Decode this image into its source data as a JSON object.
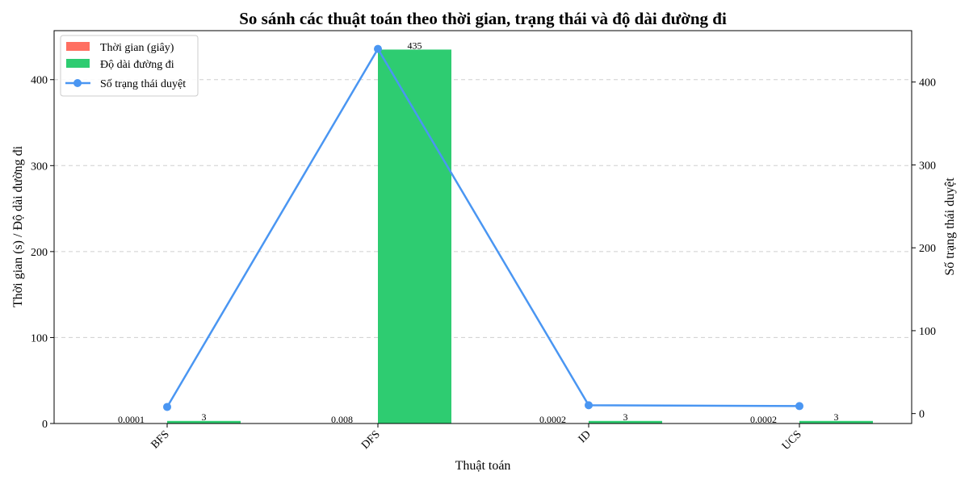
{
  "chart_data": {
    "type": "bar",
    "title": "So sánh các thuật toán theo thời gian, trạng thái và độ dài đường đi",
    "xlabel": "Thuật toán",
    "ylabel": "Thời gian (s) / Độ dài đường đi",
    "y2label": "Số trạng thái duyệt",
    "categories": [
      "BFS",
      "DFS",
      "ID",
      "UCS"
    ],
    "ylim": [
      0,
      457
    ],
    "y2lim": [
      -12,
      462
    ],
    "yticks": [
      0,
      100,
      200,
      300,
      400
    ],
    "y2ticks": [
      0,
      100,
      200,
      300,
      400
    ],
    "grid": true,
    "legend_position": "top-left",
    "series": [
      {
        "name": "Thời gian (giây)",
        "kind": "bar",
        "axis": "left",
        "color": "#ff6f61",
        "values": [
          0.0001,
          0.008,
          0.0002,
          0.0002
        ],
        "labels": [
          "0.0001",
          "0.008",
          "0.0002",
          "0.0002"
        ]
      },
      {
        "name": "Độ dài đường đi",
        "kind": "bar",
        "axis": "left",
        "color": "#2ecc71",
        "values": [
          3,
          435,
          3,
          3
        ],
        "labels": [
          "3",
          "435",
          "3",
          "3"
        ]
      },
      {
        "name": "Số trạng thái duyệt",
        "kind": "line",
        "axis": "right",
        "color": "#4a96f2",
        "values": [
          8,
          440,
          10,
          9
        ]
      }
    ]
  }
}
